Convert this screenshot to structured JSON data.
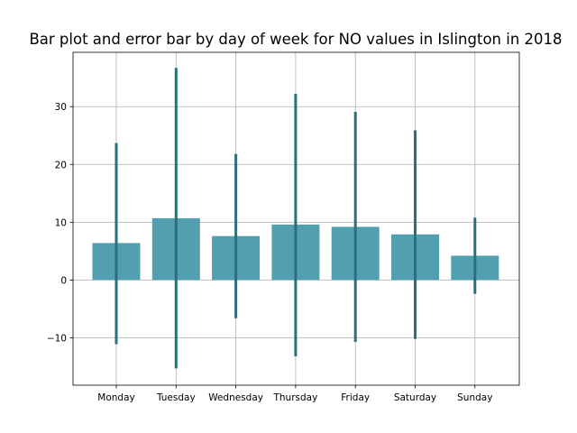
{
  "chart_data": {
    "type": "bar",
    "title": "Bar plot and error bar by day of week for NO values in Islington in 2018",
    "xlabel": "",
    "ylabel": "",
    "categories": [
      "Monday",
      "Tuesday",
      "Wednesday",
      "Thursday",
      "Friday",
      "Saturday",
      "Sunday"
    ],
    "values": [
      6.4,
      10.7,
      7.6,
      9.6,
      9.2,
      7.9,
      4.2
    ],
    "error_low": [
      -11.1,
      -15.3,
      -6.6,
      -13.2,
      -10.7,
      -10.2,
      -2.4
    ],
    "error_high": [
      23.7,
      36.7,
      21.8,
      32.2,
      29.1,
      25.9,
      10.8
    ],
    "ylim": [
      -18.2,
      39.4
    ],
    "yticks": [
      -10,
      0,
      10,
      20,
      30
    ],
    "ytick_labels": [
      "−10",
      "0",
      "10",
      "20",
      "30"
    ],
    "grid": true,
    "colors": {
      "bar": "#529fb2",
      "error": "#2a6f7a"
    }
  }
}
